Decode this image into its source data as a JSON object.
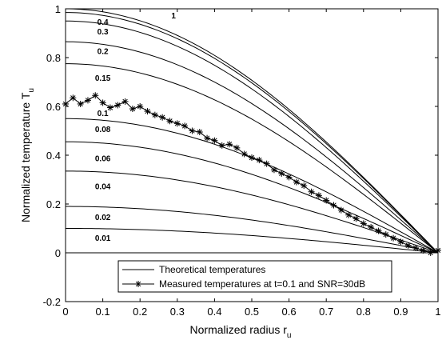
{
  "chart_data": {
    "type": "line",
    "xlabel": "Normalized radius r",
    "xlabel_sub": "u",
    "ylabel": "Normalized temperature T",
    "ylabel_sub": "u",
    "xlim": [
      0,
      1
    ],
    "ylim": [
      -0.2,
      1
    ],
    "x_ticks": [
      "0",
      "0.1",
      "0.2",
      "0.3",
      "0.4",
      "0.5",
      "0.6",
      "0.7",
      "0.8",
      "0.9",
      "1"
    ],
    "y_ticks": [
      "-0.2",
      "0",
      "0.2",
      "0.4",
      "0.6",
      "0.8",
      "1"
    ],
    "grid": false,
    "legend_position": "bottom-center",
    "legend": [
      {
        "label": "Theoretical temperatures",
        "style": "line"
      },
      {
        "label": "Measured temperatures at t=0.1 and SNR=30dB",
        "style": "line-star"
      }
    ],
    "theoretical_series": [
      {
        "name": "1",
        "center_value": 1.0,
        "label_x": 0.29,
        "label_y": 0.96
      },
      {
        "name": "0.4",
        "center_value": 0.985,
        "label_x": 0.1,
        "label_y": 0.935
      },
      {
        "name": "0.3",
        "center_value": 0.95,
        "label_x": 0.1,
        "label_y": 0.895
      },
      {
        "name": "0.2",
        "center_value": 0.865,
        "label_x": 0.1,
        "label_y": 0.815
      },
      {
        "name": "0.15",
        "center_value": 0.775,
        "label_x": 0.1,
        "label_y": 0.705
      },
      {
        "name": "0.1",
        "center_value": 0.55,
        "label_x": 0.1,
        "label_y": 0.56
      },
      {
        "name": "0.08",
        "center_value": 0.455,
        "label_x": 0.1,
        "label_y": 0.495
      },
      {
        "name": "0.06",
        "center_value": 0.335,
        "label_x": 0.1,
        "label_y": 0.375
      },
      {
        "name": "0.04",
        "center_value": 0.19,
        "label_x": 0.1,
        "label_y": 0.26
      },
      {
        "name": "0.02",
        "center_value": 0.1,
        "label_x": 0.1,
        "label_y": 0.135
      },
      {
        "name": "0.01",
        "center_value": 0.0,
        "label_x": 0.1,
        "label_y": 0.05
      }
    ],
    "measured_series": {
      "name": "Measured temperatures at t=0.1 and SNR=30dB",
      "x": [
        0.0,
        0.02,
        0.04,
        0.06,
        0.08,
        0.1,
        0.12,
        0.14,
        0.16,
        0.18,
        0.2,
        0.22,
        0.24,
        0.26,
        0.28,
        0.3,
        0.32,
        0.34,
        0.36,
        0.38,
        0.4,
        0.42,
        0.44,
        0.46,
        0.48,
        0.5,
        0.52,
        0.54,
        0.56,
        0.58,
        0.6,
        0.62,
        0.64,
        0.66,
        0.68,
        0.7,
        0.72,
        0.74,
        0.76,
        0.78,
        0.8,
        0.82,
        0.84,
        0.86,
        0.88,
        0.9,
        0.92,
        0.94,
        0.96,
        0.98,
        1.0
      ],
      "y": [
        0.61,
        0.635,
        0.61,
        0.625,
        0.645,
        0.615,
        0.595,
        0.605,
        0.62,
        0.59,
        0.6,
        0.58,
        0.565,
        0.555,
        0.54,
        0.53,
        0.52,
        0.5,
        0.495,
        0.47,
        0.46,
        0.44,
        0.445,
        0.43,
        0.405,
        0.39,
        0.38,
        0.365,
        0.34,
        0.325,
        0.31,
        0.29,
        0.275,
        0.25,
        0.235,
        0.215,
        0.195,
        0.175,
        0.155,
        0.14,
        0.12,
        0.105,
        0.09,
        0.075,
        0.06,
        0.045,
        0.03,
        0.02,
        0.01,
        0.0,
        0.01
      ]
    }
  }
}
